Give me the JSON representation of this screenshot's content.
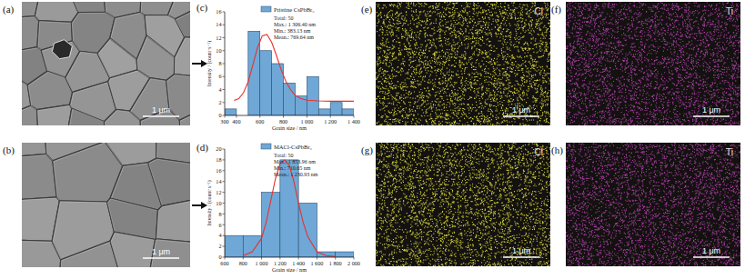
{
  "sem_images": [
    {
      "label": "(a)",
      "scale_bar": "1 μm"
    },
    {
      "label": "(b)",
      "scale_bar": "1 μm"
    }
  ],
  "eds_maps": [
    {
      "label": "(e)",
      "element": "Cl",
      "color": "#c9c93a",
      "scale_bar": "1 μm"
    },
    {
      "label": "(f)",
      "element": "Ti",
      "color": "#a43ca0",
      "scale_bar": "1 μm"
    },
    {
      "label": "(g)",
      "element": "Cl",
      "color": "#c9c93a",
      "scale_bar": "1 μm"
    },
    {
      "label": "(h)",
      "element": "Ti",
      "color": "#a43ca0",
      "scale_bar": "1 μm"
    }
  ],
  "chart_data": [
    {
      "type": "histogram",
      "panel_label": "(c)",
      "x_label": "Grain size / nm",
      "y_label": "Intensity / (count·s⁻¹)",
      "bins": [
        300,
        400,
        500,
        600,
        700,
        800,
        900,
        1000,
        1100,
        1200,
        1300,
        1400
      ],
      "series": [
        {
          "name": "Pristine CsPbBr₃",
          "color": "#6fa8d6",
          "values": [
            1,
            0,
            13,
            10,
            8,
            5,
            3,
            6,
            1,
            2,
            1
          ]
        }
      ],
      "fit": {
        "type": "line",
        "color": "#e8312f",
        "x": [
          380,
          420,
          460,
          500,
          540,
          580,
          620,
          660,
          700,
          740,
          780,
          820,
          860,
          900,
          950,
          1000,
          1100,
          1200,
          1300,
          1400
        ],
        "values": [
          2.3,
          2.6,
          3.5,
          5.2,
          7.8,
          10.5,
          12.3,
          12.5,
          11.3,
          9.3,
          7.1,
          5.3,
          4,
          3.1,
          2.6,
          2.35,
          2.25,
          2.2,
          2.2,
          2.2
        ]
      },
      "annotations": [
        "Total: 50",
        "Max.: 1 306.40 nm",
        "Min.: 383.13 nm",
        "Mean.: 769.64 nm"
      ],
      "xlim": [
        300,
        1400
      ],
      "xticks": [
        300,
        400,
        600,
        800,
        {
          "value": 1000,
          "label": "1 000"
        },
        {
          "value": 1200,
          "label": "1 200"
        },
        {
          "value": 1400,
          "label": "1 400"
        }
      ],
      "ylim": [
        0,
        16
      ],
      "yticks": [
        0,
        2,
        4,
        6,
        8,
        10,
        12,
        14,
        16
      ],
      "legend": "top-right"
    },
    {
      "type": "histogram",
      "panel_label": "(d)",
      "x_label": "Grain size / nm",
      "y_label": "Intensity / (count·s⁻¹)",
      "bins": [
        600,
        800,
        1000,
        1200,
        1400,
        1600,
        1800,
        2000
      ],
      "series": [
        {
          "name": "MACl-CsPbBr₃",
          "color": "#6fa8d6",
          "values": [
            4,
            4,
            12,
            18,
            10,
            1,
            1
          ]
        }
      ],
      "fit": {
        "type": "line",
        "color": "#e8312f",
        "x": [
          800,
          900,
          1000,
          1050,
          1100,
          1150,
          1200,
          1250,
          1300,
          1350,
          1400,
          1450,
          1500,
          1600,
          1700,
          1800
        ],
        "values": [
          0.3,
          1,
          3.5,
          6.5,
          10.5,
          14.5,
          17.3,
          18,
          17,
          14,
          10,
          6.5,
          3.8,
          1,
          0.3,
          0.1
        ]
      },
      "annotations": [
        "Total: 50",
        "Max.: 1 853.96 nm",
        "Min.: 710.65 nm",
        "Mean.: 1 230.93 nm"
      ],
      "xlim": [
        600,
        2000
      ],
      "xticks": [
        600,
        800,
        {
          "value": 1000,
          "label": "1 000"
        },
        {
          "value": 1200,
          "label": "1 200"
        },
        {
          "value": 1400,
          "label": "1 400"
        },
        {
          "value": 1600,
          "label": "1 600"
        },
        {
          "value": 1800,
          "label": "1 800"
        },
        {
          "value": 2000,
          "label": "2 000"
        }
      ],
      "ylim": [
        0,
        20
      ],
      "yticks": [
        0,
        2,
        4,
        6,
        8,
        10,
        12,
        14,
        16,
        18,
        20
      ],
      "legend": "top-right"
    }
  ]
}
